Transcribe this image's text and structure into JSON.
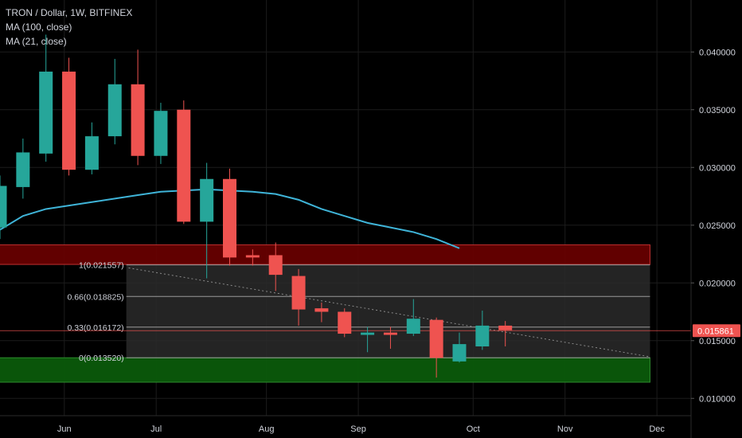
{
  "legend": {
    "symbol": "TRON / Dollar, 1W, BITFINEX",
    "ma1": "MA (100, close)",
    "ma2": "MA (21, close)"
  },
  "colors": {
    "background": "#000000",
    "up": "#26a69a",
    "down": "#ef5350",
    "ma_line": "#3fb4d8",
    "resistance_zone": "#6b0000",
    "support_zone": "#0b5a0b",
    "fib_box": "#2a2a2a",
    "grid": "#1c1c1c"
  },
  "chart_data": {
    "type": "candlestick",
    "symbol": "TRON / Dollar",
    "interval": "1W",
    "exchange": "BITFINEX",
    "y_axis": {
      "ticks": [
        "0.040000",
        "0.035000",
        "0.030000",
        "0.025000",
        "0.020000",
        "0.015000",
        "0.010000"
      ],
      "tick_values": [
        0.04,
        0.035,
        0.03,
        0.025,
        0.02,
        0.015,
        0.01
      ],
      "range": [
        0.0085,
        0.0445
      ]
    },
    "x_axis": {
      "labels": [
        "Jun",
        "Jul",
        "Aug",
        "Sep",
        "Oct",
        "Nov",
        "Dec"
      ],
      "label_weeks": [
        2.8,
        6.8,
        11.6,
        15.6,
        20.6,
        24.6,
        28.6
      ]
    },
    "candles": [
      {
        "w": 0,
        "o": 0.0248,
        "h": 0.0293,
        "l": 0.0238,
        "c": 0.0284
      },
      {
        "w": 1,
        "o": 0.0283,
        "h": 0.0325,
        "l": 0.0273,
        "c": 0.0313
      },
      {
        "w": 2,
        "o": 0.0312,
        "h": 0.0415,
        "l": 0.0305,
        "c": 0.0383
      },
      {
        "w": 3,
        "o": 0.0383,
        "h": 0.0395,
        "l": 0.0293,
        "c": 0.0298
      },
      {
        "w": 4,
        "o": 0.0298,
        "h": 0.0339,
        "l": 0.0294,
        "c": 0.0327
      },
      {
        "w": 5,
        "o": 0.0327,
        "h": 0.0394,
        "l": 0.032,
        "c": 0.0372
      },
      {
        "w": 6,
        "o": 0.0372,
        "h": 0.0402,
        "l": 0.0302,
        "c": 0.031
      },
      {
        "w": 7,
        "o": 0.031,
        "h": 0.0356,
        "l": 0.0303,
        "c": 0.0349
      },
      {
        "w": 8,
        "o": 0.035,
        "h": 0.0358,
        "l": 0.0251,
        "c": 0.0253
      },
      {
        "w": 9,
        "o": 0.0253,
        "h": 0.0304,
        "l": 0.0204,
        "c": 0.029
      },
      {
        "w": 10,
        "o": 0.029,
        "h": 0.0299,
        "l": 0.0215,
        "c": 0.0222
      },
      {
        "w": 11,
        "o": 0.0224,
        "h": 0.0229,
        "l": 0.0215,
        "c": 0.0222
      },
      {
        "w": 12,
        "o": 0.0224,
        "h": 0.0235,
        "l": 0.0193,
        "c": 0.0207
      },
      {
        "w": 13,
        "o": 0.0206,
        "h": 0.0212,
        "l": 0.0163,
        "c": 0.0177
      },
      {
        "w": 14,
        "o": 0.0178,
        "h": 0.0183,
        "l": 0.0166,
        "c": 0.0175
      },
      {
        "w": 15,
        "o": 0.0175,
        "h": 0.0178,
        "l": 0.0153,
        "c": 0.0156
      },
      {
        "w": 16,
        "o": 0.0155,
        "h": 0.0162,
        "l": 0.014,
        "c": 0.0157
      },
      {
        "w": 17,
        "o": 0.0157,
        "h": 0.0162,
        "l": 0.0143,
        "c": 0.0155
      },
      {
        "w": 18,
        "o": 0.0156,
        "h": 0.0186,
        "l": 0.0154,
        "c": 0.0169
      },
      {
        "w": 19,
        "o": 0.0168,
        "h": 0.017,
        "l": 0.0118,
        "c": 0.0135
      },
      {
        "w": 20,
        "o": 0.0132,
        "h": 0.0157,
        "l": 0.0131,
        "c": 0.0147
      },
      {
        "w": 21,
        "o": 0.0145,
        "h": 0.0176,
        "l": 0.0142,
        "c": 0.0163
      },
      {
        "w": 22,
        "o": 0.0163,
        "h": 0.0167,
        "l": 0.0145,
        "c": 0.0159
      }
    ],
    "ma_line": {
      "name": "MA (21, close)",
      "points": [
        {
          "w": 0,
          "v": 0.0246
        },
        {
          "w": 1,
          "v": 0.0258
        },
        {
          "w": 2,
          "v": 0.0264
        },
        {
          "w": 3,
          "v": 0.0267
        },
        {
          "w": 4,
          "v": 0.027
        },
        {
          "w": 5,
          "v": 0.0273
        },
        {
          "w": 6,
          "v": 0.0276
        },
        {
          "w": 7,
          "v": 0.0279
        },
        {
          "w": 8,
          "v": 0.028
        },
        {
          "w": 9,
          "v": 0.0281
        },
        {
          "w": 10,
          "v": 0.028
        },
        {
          "w": 11,
          "v": 0.0279
        },
        {
          "w": 12,
          "v": 0.0277
        },
        {
          "w": 13,
          "v": 0.0272
        },
        {
          "w": 14,
          "v": 0.0264
        },
        {
          "w": 15,
          "v": 0.0258
        },
        {
          "w": 16,
          "v": 0.0252
        },
        {
          "w": 17,
          "v": 0.0248
        },
        {
          "w": 18,
          "v": 0.0244
        },
        {
          "w": 19,
          "v": 0.0238
        },
        {
          "w": 20,
          "v": 0.023
        }
      ]
    },
    "resistance_zone": {
      "from_w": -0.5,
      "to_w": 28.3,
      "low": 0.0216,
      "high": 0.0233
    },
    "support_zone": {
      "from_w": -0.5,
      "to_w": 28.3,
      "low": 0.0114,
      "high": 0.01352
    },
    "fib_retracement": {
      "from_w": 5.5,
      "to_w": 28.3,
      "levels": [
        {
          "label": "1(0.021557)",
          "value": 0.021557
        },
        {
          "label": "0.66(0.018825)",
          "value": 0.018825
        },
        {
          "label": "0.33(0.016172)",
          "value": 0.016172
        },
        {
          "label": "0(0.013520)",
          "value": 0.01352
        }
      ]
    },
    "trendline": {
      "from": {
        "w": 5.6,
        "v": 0.0213
      },
      "to": {
        "w": 28.3,
        "v": 0.0136
      }
    },
    "current_price": {
      "label": "0.015861",
      "value": 0.015861
    }
  }
}
